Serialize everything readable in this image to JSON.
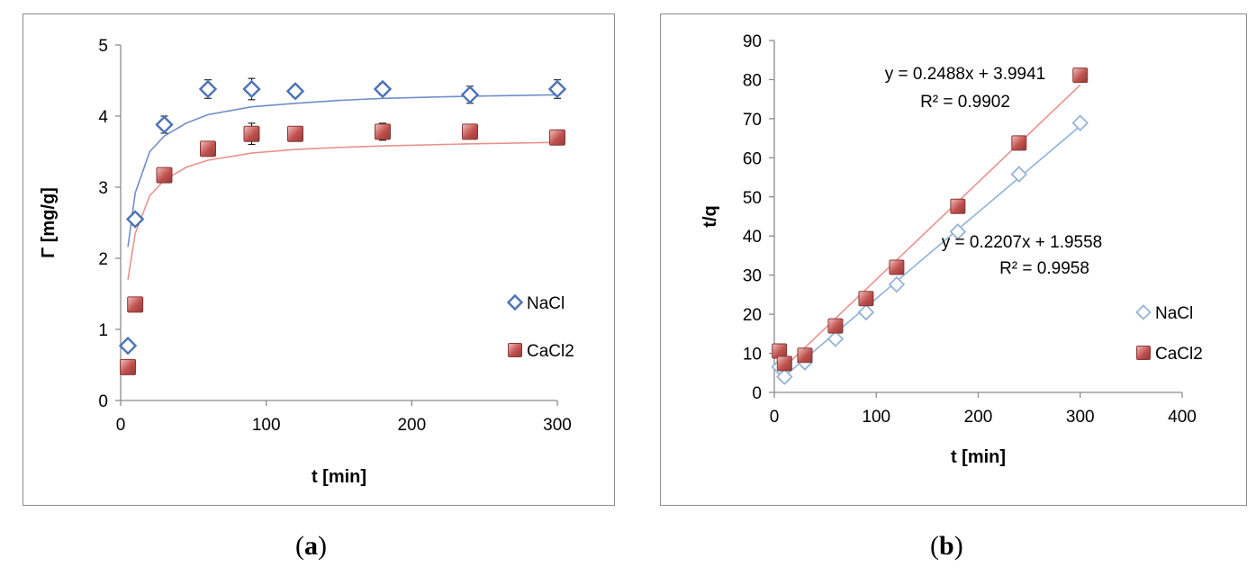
{
  "captions": {
    "a": "a",
    "b": "b"
  },
  "chart_data": [
    {
      "id": "a",
      "type": "scatter",
      "xlabel": "t [min]",
      "ylabel": "Γ [mg/g]",
      "xlim": [
        0,
        300
      ],
      "ylim": [
        0,
        5
      ],
      "xticks": [
        0,
        100,
        200,
        300
      ],
      "yticks": [
        0,
        1,
        2,
        3,
        4,
        5
      ],
      "legend_position": "right",
      "series": [
        {
          "name": "NaCl",
          "marker": "diamond",
          "color": "#4a72b8",
          "x": [
            5,
            10,
            30,
            60,
            90,
            120,
            180,
            240,
            300
          ],
          "y": [
            0.77,
            2.55,
            3.88,
            4.38,
            4.38,
            4.35,
            4.38,
            4.3,
            4.38
          ],
          "err": [
            0,
            0.08,
            0.12,
            0.13,
            0.15,
            0.08,
            0.08,
            0.12,
            0.13
          ],
          "fit": {
            "x": [
              5,
              10,
              20,
              30,
              45,
              60,
              90,
              120,
              150,
              180,
              240,
              300
            ],
            "y": [
              2.16,
              2.92,
              3.5,
              3.72,
              3.9,
              4.02,
              4.13,
              4.18,
              4.22,
              4.25,
              4.28,
              4.3
            ]
          }
        },
        {
          "name": "CaCl2",
          "marker": "square",
          "color": "#c0504d",
          "x": [
            5,
            10,
            30,
            60,
            90,
            120,
            180,
            240,
            300
          ],
          "y": [
            0.47,
            1.35,
            3.17,
            3.54,
            3.75,
            3.75,
            3.78,
            3.78,
            3.7
          ],
          "err": [
            0,
            0,
            0.05,
            0.1,
            0.15,
            0.1,
            0.12,
            0.05,
            0.1
          ],
          "fit": {
            "x": [
              5,
              10,
              20,
              30,
              45,
              60,
              90,
              120,
              150,
              180,
              240,
              300
            ],
            "y": [
              1.7,
              2.35,
              2.88,
              3.1,
              3.28,
              3.38,
              3.48,
              3.53,
              3.56,
              3.58,
              3.61,
              3.63
            ]
          }
        }
      ]
    },
    {
      "id": "b",
      "type": "scatter",
      "xlabel": "t [min]",
      "ylabel": "t/q",
      "xlim": [
        0,
        400
      ],
      "ylim": [
        0,
        90
      ],
      "xticks": [
        0,
        100,
        200,
        300,
        400
      ],
      "yticks": [
        0,
        10,
        20,
        30,
        40,
        50,
        60,
        70,
        80,
        90
      ],
      "legend_position": "right",
      "annotations": [
        {
          "text": "y = 0.2488x + 3.9941",
          "series": "CaCl2"
        },
        {
          "text": "R² = 0.9902",
          "series": "CaCl2"
        },
        {
          "text": "y = 0.2207x + 1.9558",
          "series": "NaCl"
        },
        {
          "text": "R² = 0.9958",
          "series": "NaCl"
        }
      ],
      "series": [
        {
          "name": "NaCl",
          "marker": "diamond",
          "color": "#95b3d7",
          "x": [
            5,
            10,
            30,
            60,
            90,
            120,
            180,
            240,
            300
          ],
          "y": [
            6.5,
            4.0,
            7.7,
            13.7,
            20.5,
            27.6,
            41.1,
            55.8,
            68.9
          ],
          "fit": {
            "slope": 0.2207,
            "intercept": 1.9558,
            "x": [
              5,
              300
            ]
          }
        },
        {
          "name": "CaCl2",
          "marker": "square",
          "color": "#c0504d",
          "x": [
            5,
            10,
            30,
            60,
            90,
            120,
            180,
            240,
            300
          ],
          "y": [
            10.6,
            7.4,
            9.5,
            17.0,
            24.0,
            32.0,
            47.6,
            63.8,
            81.1
          ],
          "fit": {
            "slope": 0.2488,
            "intercept": 3.9941,
            "x": [
              5,
              300
            ]
          }
        }
      ]
    }
  ]
}
